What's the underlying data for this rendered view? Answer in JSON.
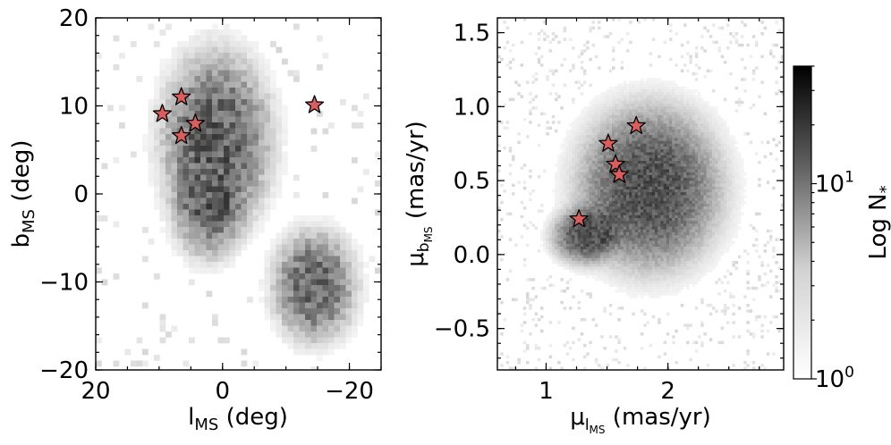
{
  "chart_data": [
    {
      "type": "heatmap",
      "panel": "left",
      "xlabel": {
        "base": "l",
        "sub": "MS",
        "unit": " (deg)"
      },
      "ylabel": {
        "base": "b",
        "sub": "MS",
        "unit": " (deg)"
      },
      "xlim": [
        20,
        -25
      ],
      "ylim": [
        -20,
        20
      ],
      "x_ticks": [
        20,
        0,
        -20
      ],
      "x_tick_labels": [
        "20",
        "0",
        "−20"
      ],
      "y_ticks": [
        20,
        10,
        0,
        -10,
        -20
      ],
      "y_tick_labels": [
        "20",
        "10",
        "0",
        "−10",
        "−20"
      ],
      "colormap": "greys",
      "density_clumps": [
        {
          "x": 1,
          "y": 6,
          "sx": 5.5,
          "sy": 6.5,
          "amp": 1.0
        },
        {
          "x": -14.5,
          "y": -10.5,
          "sx": 4.2,
          "sy": 4.0,
          "amp": 0.95
        },
        {
          "x": 2.5,
          "y": -2.5,
          "sx": 3.5,
          "sy": 3.5,
          "amp": 0.5
        }
      ],
      "markers": {
        "shape": "star",
        "color": "#d95f5f",
        "points": [
          {
            "x": 9.5,
            "y": 9.1
          },
          {
            "x": 6.5,
            "y": 11.0
          },
          {
            "x": 4.3,
            "y": 8.0
          },
          {
            "x": 6.5,
            "y": 6.6
          },
          {
            "x": -14.5,
            "y": 10.1
          }
        ]
      }
    },
    {
      "type": "heatmap",
      "panel": "right",
      "xlabel": {
        "base": "μ",
        "sub": "l",
        "subsub": "MS",
        "unit": " (mas/yr)"
      },
      "ylabel": {
        "base": "μ",
        "sub": "b",
        "subsub": "MS",
        "unit": " (mas/yr)"
      },
      "xlim": [
        0.6,
        2.95
      ],
      "ylim": [
        -0.78,
        1.6
      ],
      "x_ticks": [
        1,
        2
      ],
      "x_tick_labels": [
        "1",
        "2"
      ],
      "y_ticks": [
        1.5,
        1.0,
        0.5,
        0.0,
        -0.5
      ],
      "y_tick_labels": [
        "1.5",
        "1.0",
        "0.5",
        "0.0",
        "−0.5"
      ],
      "colormap": "greys",
      "density_clumps": [
        {
          "x": 1.85,
          "y": 0.45,
          "sx": 0.38,
          "sy": 0.36,
          "amp": 1.0
        },
        {
          "x": 1.3,
          "y": 0.12,
          "sx": 0.17,
          "sy": 0.12,
          "amp": 0.8
        }
      ],
      "markers": {
        "shape": "star",
        "color": "#d95f5f",
        "points": [
          {
            "x": 1.27,
            "y": 0.24
          },
          {
            "x": 1.51,
            "y": 0.75
          },
          {
            "x": 1.57,
            "y": 0.61
          },
          {
            "x": 1.6,
            "y": 0.54
          },
          {
            "x": 1.74,
            "y": 0.87
          }
        ]
      }
    }
  ],
  "colorbar": {
    "label": "Log N",
    "label_sub": "*",
    "scale": "log",
    "ticks": [
      {
        "value": 1,
        "label_base": "10",
        "label_exp": "0"
      },
      {
        "value": 10,
        "label_base": "10",
        "label_exp": "1"
      }
    ],
    "range": [
      1,
      40
    ],
    "colors": [
      "#ffffff",
      "#000000"
    ]
  }
}
